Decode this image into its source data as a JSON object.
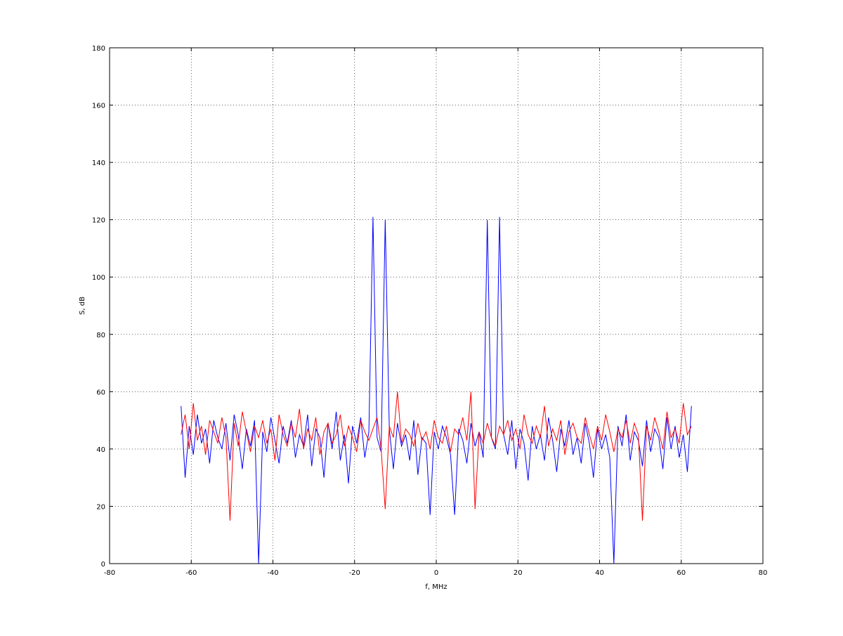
{
  "chart_data": {
    "type": "line",
    "x_label": "f, MHz",
    "y_label": "S, dB",
    "x": [
      -62.5,
      -61.5,
      -60.5,
      -59.5,
      -58.5,
      -57.5,
      -56.5,
      -55.5,
      -54.5,
      -53.5,
      -52.5,
      -51.5,
      -50.5,
      -49.5,
      -48.5,
      -47.5,
      -46.5,
      -45.5,
      -44.5,
      -43.5,
      -42.5,
      -41.5,
      -40.5,
      -39.5,
      -38.5,
      -37.5,
      -36.5,
      -35.5,
      -34.5,
      -33.5,
      -32.5,
      -31.5,
      -30.5,
      -29.5,
      -28.5,
      -27.5,
      -26.5,
      -25.5,
      -24.5,
      -23.5,
      -22.5,
      -21.5,
      -20.5,
      -19.5,
      -18.5,
      -17.5,
      -16.5,
      -15.5,
      -14.5,
      -13.5,
      -12.5,
      -11.5,
      -10.5,
      -9.5,
      -8.5,
      -7.5,
      -6.5,
      -5.5,
      -4.5,
      -3.5,
      -2.5,
      -1.5,
      -0.5,
      0.5,
      1.5,
      2.5,
      3.5,
      4.5,
      5.5,
      6.5,
      7.5,
      8.5,
      9.5,
      10.5,
      11.5,
      12.5,
      13.5,
      14.5,
      15.5,
      16.5,
      17.5,
      18.5,
      19.5,
      20.5,
      21.5,
      22.5,
      23.5,
      24.5,
      25.5,
      26.5,
      27.5,
      28.5,
      29.5,
      30.5,
      31.5,
      32.5,
      33.5,
      34.5,
      35.5,
      36.5,
      37.5,
      38.5,
      39.5,
      40.5,
      41.5,
      42.5,
      43.5,
      44.5,
      45.5,
      46.5,
      47.5,
      48.5,
      49.5,
      50.5,
      51.5,
      52.5,
      53.5,
      54.5,
      55.5,
      56.5,
      57.5,
      58.5,
      59.5,
      60.5,
      61.5,
      62.5
    ],
    "series": [
      {
        "color": "#0000ff",
        "values": [
          55,
          30,
          48,
          38,
          52,
          42,
          47,
          35,
          50,
          44,
          40,
          49,
          36,
          52,
          45,
          33,
          47,
          41,
          50,
          0,
          46,
          39,
          51,
          43,
          35,
          48,
          42,
          50,
          37,
          45,
          41,
          52,
          34,
          47,
          44,
          30,
          49,
          40,
          53,
          36,
          45,
          28,
          48,
          42,
          51,
          37,
          46,
          121,
          44,
          39,
          120,
          47,
          33,
          49,
          41,
          45,
          36,
          50,
          31,
          44,
          42,
          17,
          46,
          40,
          48,
          44,
          38,
          17,
          47,
          43,
          35,
          49,
          41,
          46,
          37,
          120,
          44,
          40,
          121,
          45,
          38,
          50,
          33,
          47,
          42,
          29,
          48,
          40,
          45,
          36,
          51,
          43,
          32,
          47,
          41,
          50,
          38,
          44,
          35,
          49,
          42,
          30,
          47,
          40,
          45,
          37,
          0,
          48,
          41,
          52,
          36,
          46,
          43,
          34,
          50,
          39,
          47,
          44,
          33,
          51,
          40,
          48,
          37,
          45,
          32,
          55
        ]
      },
      {
        "color": "#ff0000",
        "values": [
          45,
          52,
          40,
          56,
          43,
          48,
          38,
          50,
          46,
          42,
          51,
          44,
          15,
          49,
          41,
          53,
          46,
          39,
          48,
          44,
          50,
          42,
          47,
          36,
          52,
          45,
          41,
          49,
          44,
          54,
          40,
          47,
          43,
          51,
          38,
          46,
          49,
          42,
          45,
          52,
          41,
          48,
          44,
          39,
          50,
          46,
          43,
          47,
          51,
          40,
          19,
          48,
          44,
          60,
          42,
          47,
          45,
          41,
          49,
          43,
          46,
          40,
          50,
          44,
          42,
          48,
          39,
          47,
          45,
          51,
          43,
          60,
          19,
          46,
          42,
          49,
          44,
          41,
          48,
          45,
          50,
          43,
          47,
          40,
          52,
          45,
          42,
          48,
          44,
          55,
          41,
          47,
          43,
          50,
          38,
          46,
          49,
          44,
          42,
          51,
          45,
          40,
          48,
          43,
          52,
          46,
          39,
          47,
          44,
          50,
          42,
          49,
          45,
          15,
          48,
          43,
          51,
          46,
          40,
          53,
          44,
          47,
          42,
          56,
          45,
          48
        ]
      }
    ],
    "xlim": [
      -80,
      80
    ],
    "xticks": [
      -80,
      -60,
      -40,
      -20,
      0,
      20,
      40,
      60,
      80
    ],
    "ylim": [
      0,
      180
    ],
    "yticks": [
      0,
      20,
      40,
      60,
      80,
      100,
      120,
      140,
      160,
      180
    ],
    "grid": true
  }
}
